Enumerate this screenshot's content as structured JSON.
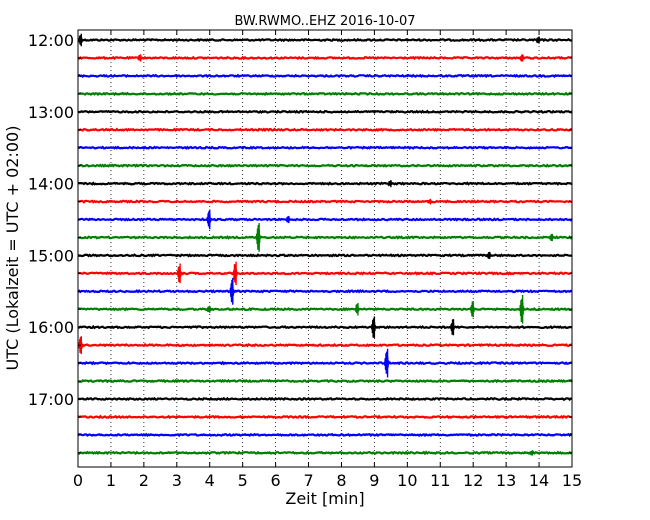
{
  "chart_data": {
    "type": "line",
    "title": "BW.RWMO..EHZ 2016-10-07",
    "xlabel": "Zeit  [min]",
    "ylabel": "UTC (Lokalzeit = UTC + 02:00)",
    "xlim": [
      0,
      15
    ],
    "x_ticks": [
      0,
      1,
      2,
      3,
      4,
      5,
      6,
      7,
      8,
      9,
      10,
      11,
      12,
      13,
      14,
      15
    ],
    "y_tick_labels": [
      "12:00",
      "13:00",
      "14:00",
      "15:00",
      "16:00",
      "17:00"
    ],
    "trace_minutes_per_line": 15,
    "grid": "vertical-dotted",
    "colors": [
      "#000000",
      "#ff0000",
      "#0000ff",
      "#008000"
    ],
    "traces": [
      {
        "start": "12:00",
        "color": "#000000",
        "events": [
          {
            "t": 0.1,
            "amp": 0.35
          },
          {
            "t": 14.0,
            "amp": 0.2
          }
        ]
      },
      {
        "start": "12:15",
        "color": "#ff0000",
        "events": [
          {
            "t": 1.9,
            "amp": 0.2
          },
          {
            "t": 13.5,
            "amp": 0.2
          }
        ]
      },
      {
        "start": "12:30",
        "color": "#0000ff",
        "events": []
      },
      {
        "start": "12:45",
        "color": "#008000",
        "events": []
      },
      {
        "start": "13:00",
        "color": "#000000",
        "events": []
      },
      {
        "start": "13:15",
        "color": "#ff0000",
        "events": []
      },
      {
        "start": "13:30",
        "color": "#0000ff",
        "events": []
      },
      {
        "start": "13:45",
        "color": "#008000",
        "events": []
      },
      {
        "start": "14:00",
        "color": "#000000",
        "events": [
          {
            "t": 9.5,
            "amp": 0.2
          }
        ]
      },
      {
        "start": "14:15",
        "color": "#ff0000",
        "events": [
          {
            "t": 10.7,
            "amp": 0.15
          }
        ]
      },
      {
        "start": "14:30",
        "color": "#0000ff",
        "events": [
          {
            "t": 4.0,
            "amp": 0.55
          },
          {
            "t": 6.4,
            "amp": 0.2
          }
        ]
      },
      {
        "start": "14:45",
        "color": "#008000",
        "events": [
          {
            "t": 5.5,
            "amp": 0.8
          },
          {
            "t": 14.4,
            "amp": 0.2
          }
        ]
      },
      {
        "start": "15:00",
        "color": "#000000",
        "events": [
          {
            "t": 12.5,
            "amp": 0.2
          }
        ]
      },
      {
        "start": "15:15",
        "color": "#ff0000",
        "events": [
          {
            "t": 3.1,
            "amp": 0.55
          },
          {
            "t": 4.8,
            "amp": 0.65
          }
        ]
      },
      {
        "start": "15:30",
        "color": "#0000ff",
        "events": [
          {
            "t": 4.7,
            "amp": 0.75
          }
        ]
      },
      {
        "start": "15:45",
        "color": "#008000",
        "events": [
          {
            "t": 4.0,
            "amp": 0.2
          },
          {
            "t": 8.5,
            "amp": 0.35
          },
          {
            "t": 12.0,
            "amp": 0.45
          },
          {
            "t": 13.5,
            "amp": 0.8
          }
        ]
      },
      {
        "start": "16:00",
        "color": "#000000",
        "events": [
          {
            "t": 9.0,
            "amp": 0.6
          },
          {
            "t": 11.4,
            "amp": 0.45
          }
        ]
      },
      {
        "start": "16:15",
        "color": "#ff0000",
        "events": [
          {
            "t": 0.1,
            "amp": 0.5
          }
        ]
      },
      {
        "start": "16:30",
        "color": "#0000ff",
        "events": [
          {
            "t": 9.4,
            "amp": 0.8
          }
        ]
      },
      {
        "start": "16:45",
        "color": "#008000",
        "events": []
      },
      {
        "start": "17:00",
        "color": "#000000",
        "events": []
      },
      {
        "start": "17:15",
        "color": "#ff0000",
        "events": []
      },
      {
        "start": "17:30",
        "color": "#0000ff",
        "events": []
      },
      {
        "start": "17:45",
        "color": "#008000",
        "events": [
          {
            "t": 13.8,
            "amp": 0.15
          }
        ]
      }
    ]
  }
}
